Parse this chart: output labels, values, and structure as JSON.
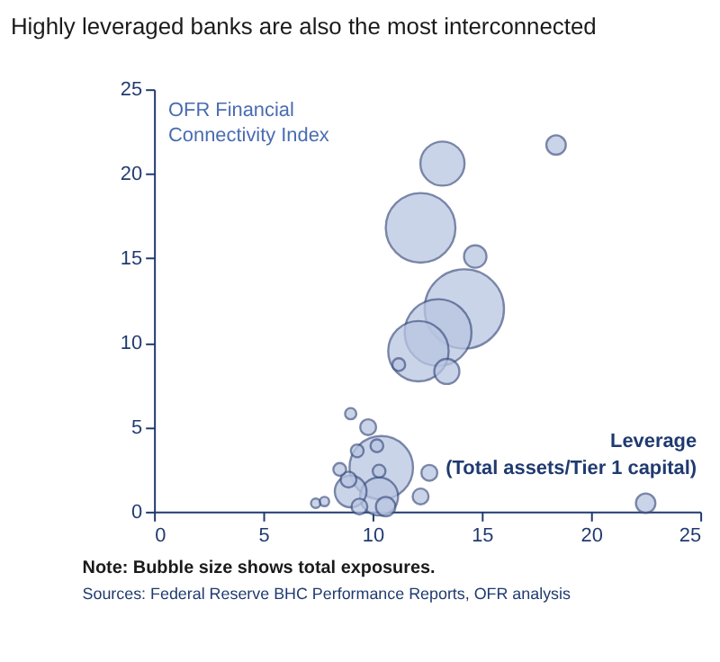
{
  "chart_data": {
    "type": "bubble",
    "title": "Highly leveraged banks are also the most interconnected",
    "ylabel": "OFR Financial Connectivity Index",
    "xlabel": "Leverage (Total assets/Tier 1 capital)",
    "annotations": [
      "Note: Bubble size shows total exposures.",
      "Sources: Federal Reserve BHC Performance Reports, OFR analysis"
    ],
    "x": [
      14.2,
      12.2,
      13.0,
      10.4,
      12.1,
      13.2,
      10.3,
      9.0,
      13.4,
      14.7,
      18.4,
      22.5,
      10.6,
      9.8,
      12.6,
      12.2,
      8.9,
      9.4,
      10.2,
      9.3,
      8.5,
      10.3,
      9.0,
      11.2,
      7.4,
      7.8
    ],
    "series": [
      {
        "color": "#b9c6e2",
        "values": [
          12.0,
          16.8,
          10.6,
          2.6,
          9.5,
          20.6,
          0.9,
          1.2,
          8.3,
          15.1,
          21.7,
          0.5,
          0.3,
          5.0,
          2.3,
          0.9,
          1.9,
          0.3,
          3.9,
          3.6,
          2.5,
          2.4,
          5.8,
          8.7,
          0.5,
          0.6
        ],
        "sizes": [
          1,
          0.77,
          0.71,
          0.64,
          0.58,
          0.31,
          0.23,
          0.16,
          0.1,
          0.08,
          0.06,
          0.06,
          0.06,
          0.04,
          0.04,
          0.04,
          0.04,
          0.04,
          0.026,
          0.026,
          0.026,
          0.026,
          0.02,
          0.026,
          0.014,
          0.014
        ]
      }
    ],
    "xlim": [
      0,
      25
    ],
    "xticks": [
      0,
      5,
      10,
      15,
      20,
      25
    ],
    "ylim": [
      0,
      25
    ],
    "yticks": [
      0,
      5,
      10,
      15,
      20,
      25
    ],
    "grid": false
  }
}
